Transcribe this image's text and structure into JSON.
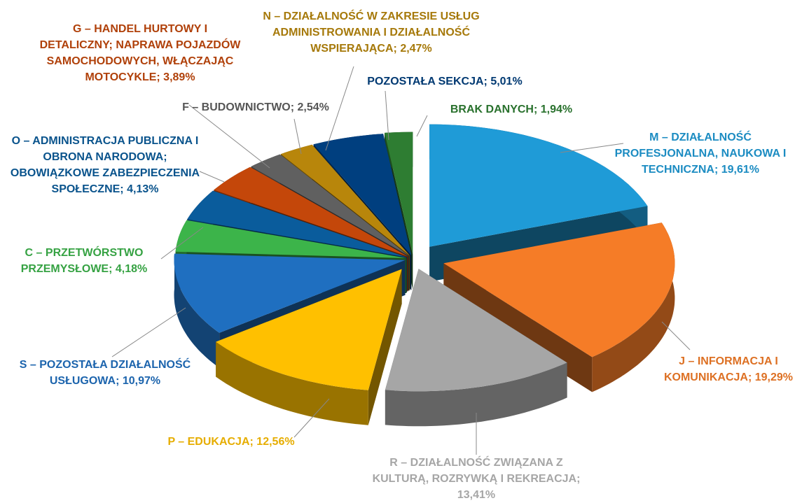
{
  "chart_data": {
    "type": "pie",
    "categories": [
      "M – DZIAŁALNOŚĆ PROFESJONALNA, NAUKOWA I TECHNICZNA;",
      "J – INFORMACJA I KOMUNIKACJA;",
      "R – DZIAŁALNOŚĆ ZWIĄZANA Z KULTURĄ, ROZRYWKĄ I REKREACJA;",
      "P – EDUKACJA;",
      "S – POZOSTAŁA DZIAŁALNOŚĆ USŁUGOWA;",
      "C – PRZETWÓRSTWO PRZEMYSŁOWE;",
      "O – ADMINISTRACJA PUBLICZNA I OBRONA NARODOWA; OBOWIĄZKOWE ZABEZPIECZENIA SPOŁECZNE;",
      "G – HANDEL HURTOWY I DETALICZNY; NAPRAWA POJAZDÓW SAMOCHODOWYCH, WŁĄCZAJĄC MOTOCYKLE;",
      "F – BUDOWNICTWO;",
      "N – DZIAŁALNOŚĆ W ZAKRESIE USŁUG ADMINISTROWANIA I DZIAŁALNOŚĆ WSPIERAJĄCA;",
      "POZOSTAŁA SEKCJA;",
      "BRAK DANYCH;"
    ],
    "values": [
      19.61,
      19.29,
      13.41,
      12.56,
      10.97,
      4.18,
      4.13,
      3.89,
      2.54,
      2.47,
      5.01,
      1.94
    ],
    "value_labels": [
      "19,61%",
      "19,29%",
      "13,41%",
      "12,56%",
      "10,97%",
      "4,18%",
      "4,13%",
      "3,89%",
      "2,54%",
      "2,47%",
      "5,01%",
      "1,94%"
    ],
    "colors": [
      "#1f9bd7",
      "#f57c27",
      "#a6a6a6",
      "#ffc000",
      "#1f6fc0",
      "#3cb44a",
      "#0a5c9c",
      "#c4470a",
      "#606060",
      "#b8860b",
      "#003f7f",
      "#2e7d32"
    ]
  }
}
